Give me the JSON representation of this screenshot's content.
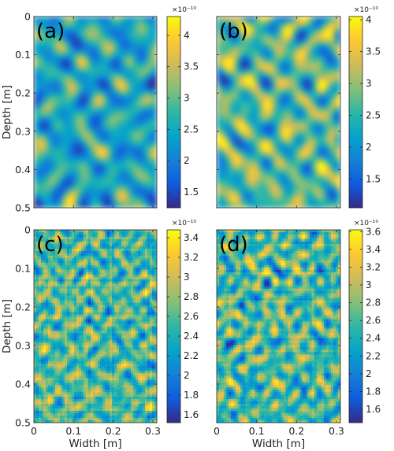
{
  "chart_data": [
    {
      "type": "heatmap",
      "panel_label": "(a)",
      "xlabel": "",
      "ylabel": "Depth [m]",
      "xlim": [
        0,
        0.31
      ],
      "ylim": [
        0,
        0.5
      ],
      "x_ticks": [
        0,
        0.1,
        0.2,
        0.3
      ],
      "x_tick_labels": [
        "",
        "",
        "",
        ""
      ],
      "y_ticks": [
        0,
        0.1,
        0.2,
        0.3,
        0.4,
        0.5
      ],
      "y_tick_labels": [
        "0",
        "0.1",
        "0.2",
        "0.3",
        "0.4",
        "0.5"
      ],
      "colorbar": {
        "range": [
          1.25,
          4.3
        ],
        "ticks": [
          1.5,
          2,
          2.5,
          3,
          3.5,
          4
        ],
        "tick_labels": [
          "1.5",
          "2",
          "2.5",
          "3",
          "3.5",
          "4"
        ],
        "multiplier": "×10⁻¹⁰",
        "colormap": "parula"
      },
      "field": {
        "style": "smooth",
        "seed": 11,
        "bias": -0.04
      }
    },
    {
      "type": "heatmap",
      "panel_label": "(b)",
      "xlabel": "",
      "ylabel": "",
      "xlim": [
        0,
        0.31
      ],
      "ylim": [
        0,
        0.5
      ],
      "x_ticks": [
        0,
        0.1,
        0.2,
        0.3
      ],
      "x_tick_labels": [
        "",
        "",
        "",
        ""
      ],
      "y_ticks": [
        0,
        0.1,
        0.2,
        0.3,
        0.4,
        0.5
      ],
      "y_tick_labels": [
        "",
        "",
        "",
        "",
        "",
        ""
      ],
      "colorbar": {
        "range": [
          1.05,
          4.05
        ],
        "ticks": [
          1.5,
          2,
          2.5,
          3,
          3.5,
          4
        ],
        "tick_labels": [
          "1.5",
          "2",
          "2.5",
          "3",
          "3.5",
          "4"
        ],
        "multiplier": "×10⁻¹⁰",
        "colormap": "parula"
      },
      "field": {
        "style": "smooth",
        "seed": 29,
        "bias": 0.04
      }
    },
    {
      "type": "heatmap",
      "panel_label": "(c)",
      "xlabel": "Width [m]",
      "ylabel": "Depth [m]",
      "xlim": [
        0,
        0.31
      ],
      "ylim": [
        0,
        0.5
      ],
      "x_ticks": [
        0,
        0.1,
        0.2,
        0.3
      ],
      "x_tick_labels": [
        "0",
        "0.1",
        "0.2",
        "0.3"
      ],
      "y_ticks": [
        0,
        0.1,
        0.2,
        0.3,
        0.4,
        0.5
      ],
      "y_tick_labels": [
        "0",
        "0.1",
        "0.2",
        "0.3",
        "0.4",
        "0.5"
      ],
      "colorbar": {
        "range": [
          1.52,
          3.48
        ],
        "ticks": [
          1.6,
          1.8,
          2,
          2.2,
          2.4,
          2.6,
          2.8,
          3,
          3.2,
          3.4
        ],
        "tick_labels": [
          "1.6",
          "1.8",
          "2",
          "2.2",
          "2.4",
          "2.6",
          "2.8",
          "3",
          "3.2",
          "3.4"
        ],
        "multiplier": "×10⁻¹⁰",
        "colormap": "parula"
      },
      "field": {
        "style": "noisy",
        "seed": 47,
        "bias": 0.0
      }
    },
    {
      "type": "heatmap",
      "panel_label": "(d)",
      "xlabel": "Width [m]",
      "ylabel": "",
      "xlim": [
        0,
        0.31
      ],
      "ylim": [
        0,
        0.5
      ],
      "x_ticks": [
        0,
        0.1,
        0.2,
        0.3
      ],
      "x_tick_labels": [
        "0",
        "0.1",
        "0.2",
        "0.3"
      ],
      "y_ticks": [
        0,
        0.1,
        0.2,
        0.3,
        0.4,
        0.5
      ],
      "y_tick_labels": [
        "",
        "",
        "",
        "",
        "",
        ""
      ],
      "colorbar": {
        "range": [
          1.45,
          3.62
        ],
        "ticks": [
          1.6,
          1.8,
          2,
          2.2,
          2.4,
          2.6,
          2.8,
          3,
          3.2,
          3.4,
          3.6
        ],
        "tick_labels": [
          "1.6",
          "1.8",
          "2",
          "2.2",
          "2.4",
          "2.6",
          "2.8",
          "3",
          "3.2",
          "3.4",
          "3.6"
        ],
        "multiplier": "×10⁻¹⁰",
        "colormap": "parula"
      },
      "field": {
        "style": "noisy",
        "seed": 83,
        "bias": -0.02
      }
    }
  ],
  "colors": {
    "parula_stops": [
      "#352a87",
      "#0f5cdd",
      "#1481d6",
      "#06a4ca",
      "#2eb7a4",
      "#87bf77",
      "#d1bb59",
      "#fec832",
      "#f9fb0e"
    ],
    "axis": "#262626"
  }
}
